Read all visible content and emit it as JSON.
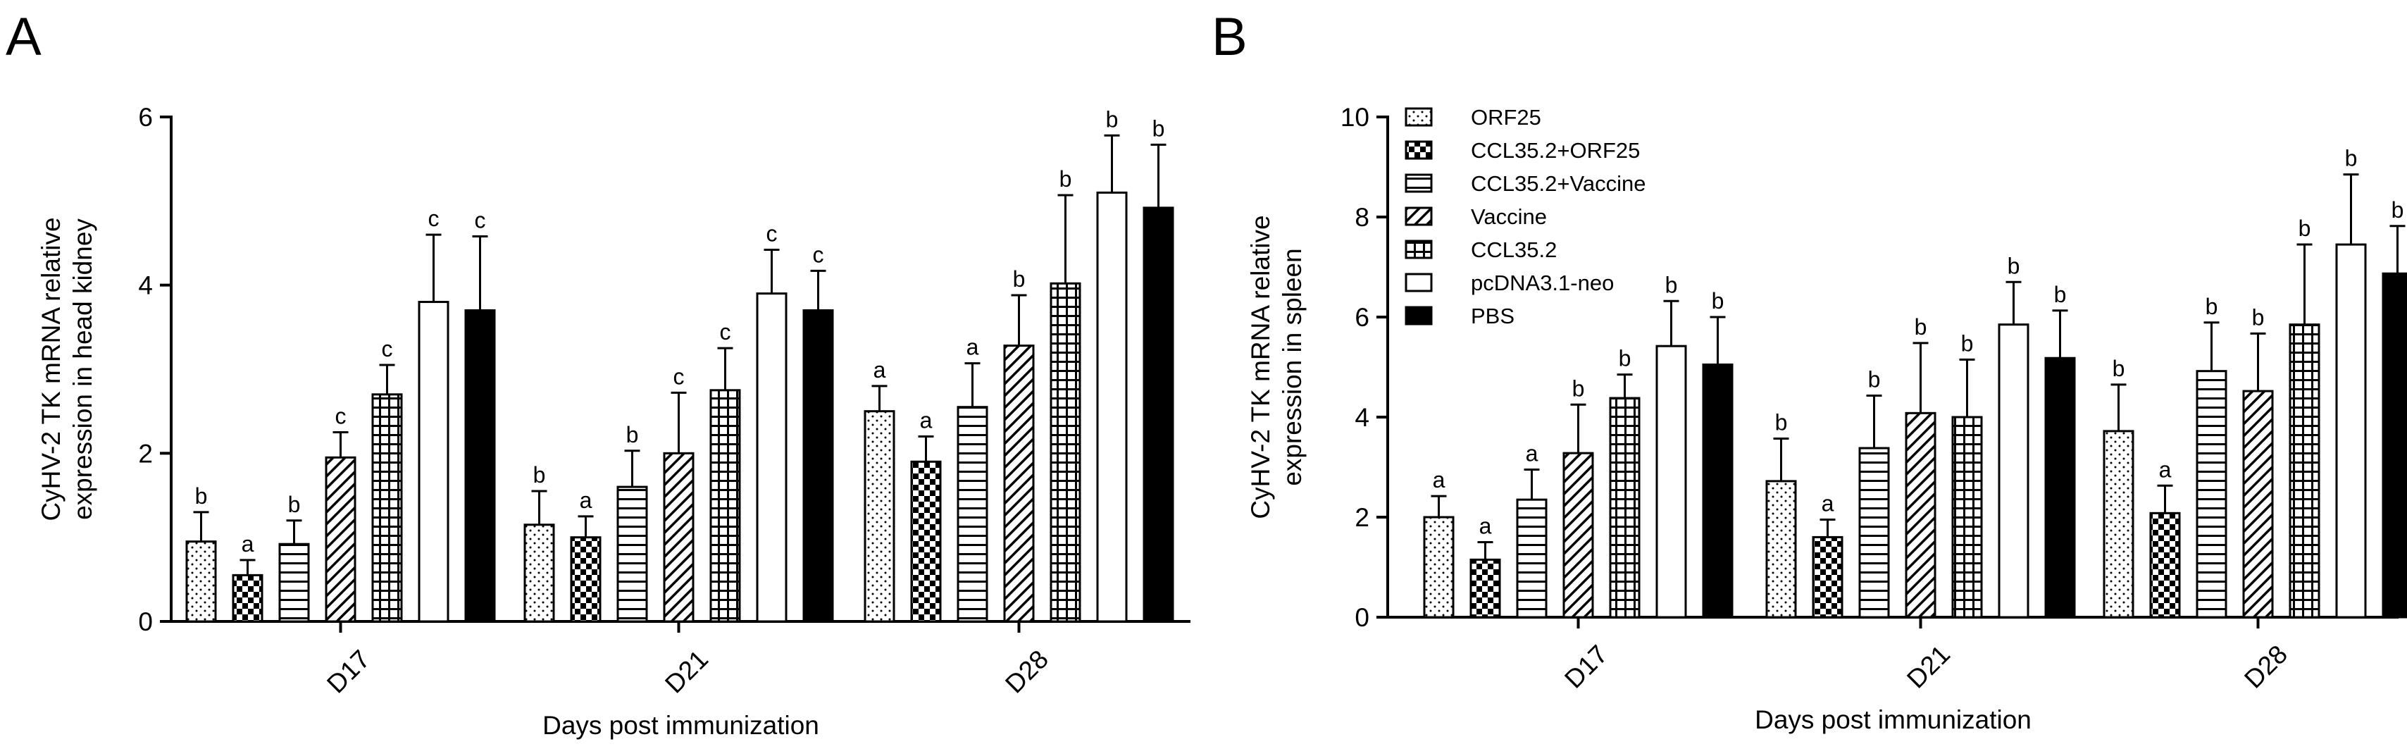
{
  "figure": {
    "panels": [
      "A",
      "B"
    ]
  },
  "chart_data": [
    {
      "panel": "A",
      "type": "bar",
      "title": "",
      "xlabel": "Days post immunization",
      "ylabel": [
        "CyHV-2 TK mRNA relative",
        "expression in head kidney"
      ],
      "ylim": [
        0,
        6
      ],
      "yticks": [
        0,
        2,
        4,
        6
      ],
      "categories": [
        "D17",
        "D21",
        "D28"
      ],
      "legend": "none",
      "series": [
        {
          "name": "ORF25",
          "pattern": "dots",
          "values": [
            0.95,
            1.15,
            2.5
          ],
          "errors": [
            0.35,
            0.4,
            0.3
          ],
          "letters": [
            "b",
            "b",
            "a"
          ]
        },
        {
          "name": "CCL35.2+ORF25",
          "pattern": "checker",
          "values": [
            0.55,
            1.0,
            1.9
          ],
          "errors": [
            0.18,
            0.25,
            0.3
          ],
          "letters": [
            "a",
            "a",
            "a"
          ]
        },
        {
          "name": "CCL35.2+Vaccine",
          "pattern": "hlines",
          "values": [
            0.92,
            1.6,
            2.55
          ],
          "errors": [
            0.28,
            0.43,
            0.52
          ],
          "letters": [
            "b",
            "b",
            "a"
          ]
        },
        {
          "name": "Vaccine",
          "pattern": "diag",
          "values": [
            1.95,
            2.0,
            3.28
          ],
          "errors": [
            0.3,
            0.72,
            0.6
          ],
          "letters": [
            "c",
            "c",
            "b"
          ]
        },
        {
          "name": "CCL35.2",
          "pattern": "grid",
          "values": [
            2.7,
            2.75,
            4.02
          ],
          "errors": [
            0.35,
            0.5,
            1.05
          ],
          "letters": [
            "c",
            "c",
            "b"
          ]
        },
        {
          "name": "pcDNA3.1-neo",
          "pattern": "white",
          "values": [
            3.8,
            3.9,
            5.1
          ],
          "errors": [
            0.8,
            0.52,
            0.68
          ],
          "letters": [
            "c",
            "c",
            "b"
          ]
        },
        {
          "name": "PBS",
          "pattern": "black",
          "values": [
            3.7,
            3.7,
            4.92
          ],
          "errors": [
            0.88,
            0.47,
            0.75
          ],
          "letters": [
            "c",
            "c",
            "b"
          ]
        }
      ]
    },
    {
      "panel": "B",
      "type": "bar",
      "title": "",
      "xlabel": "Days post immunization",
      "ylabel": [
        "CyHV-2 TK mRNA relative",
        "expression in spleen"
      ],
      "ylim": [
        0,
        10
      ],
      "yticks": [
        0,
        2,
        4,
        6,
        8,
        10
      ],
      "categories": [
        "D17",
        "D21",
        "D28"
      ],
      "legend": "top-left",
      "series": [
        {
          "name": "ORF25",
          "pattern": "dots",
          "values": [
            2.0,
            2.72,
            3.72
          ],
          "errors": [
            0.42,
            0.85,
            0.93
          ],
          "letters": [
            "a",
            "b",
            "b"
          ]
        },
        {
          "name": "CCL35.2+ORF25",
          "pattern": "checker",
          "values": [
            1.15,
            1.6,
            2.08
          ],
          "errors": [
            0.35,
            0.35,
            0.55
          ],
          "letters": [
            "a",
            "a",
            "a"
          ]
        },
        {
          "name": "CCL35.2+Vaccine",
          "pattern": "hlines",
          "values": [
            2.35,
            3.38,
            4.92
          ],
          "errors": [
            0.6,
            1.05,
            0.97
          ],
          "letters": [
            "a",
            "b",
            "b"
          ]
        },
        {
          "name": "Vaccine",
          "pattern": "diag",
          "values": [
            3.28,
            4.08,
            4.52
          ],
          "errors": [
            0.97,
            1.4,
            1.15
          ],
          "letters": [
            "b",
            "b",
            "b"
          ]
        },
        {
          "name": "CCL35.2",
          "pattern": "grid",
          "values": [
            4.38,
            4.0,
            5.85
          ],
          "errors": [
            0.47,
            1.15,
            1.6
          ],
          "letters": [
            "b",
            "b",
            "b"
          ]
        },
        {
          "name": "pcDNA3.1-neo",
          "pattern": "white",
          "values": [
            5.42,
            5.85,
            7.45
          ],
          "errors": [
            0.9,
            0.85,
            1.4
          ],
          "letters": [
            "b",
            "b",
            "b"
          ]
        },
        {
          "name": "PBS",
          "pattern": "black",
          "values": [
            5.05,
            5.18,
            6.87
          ],
          "errors": [
            0.95,
            0.95,
            0.95
          ],
          "letters": [
            "b",
            "b",
            "b"
          ]
        }
      ]
    }
  ]
}
